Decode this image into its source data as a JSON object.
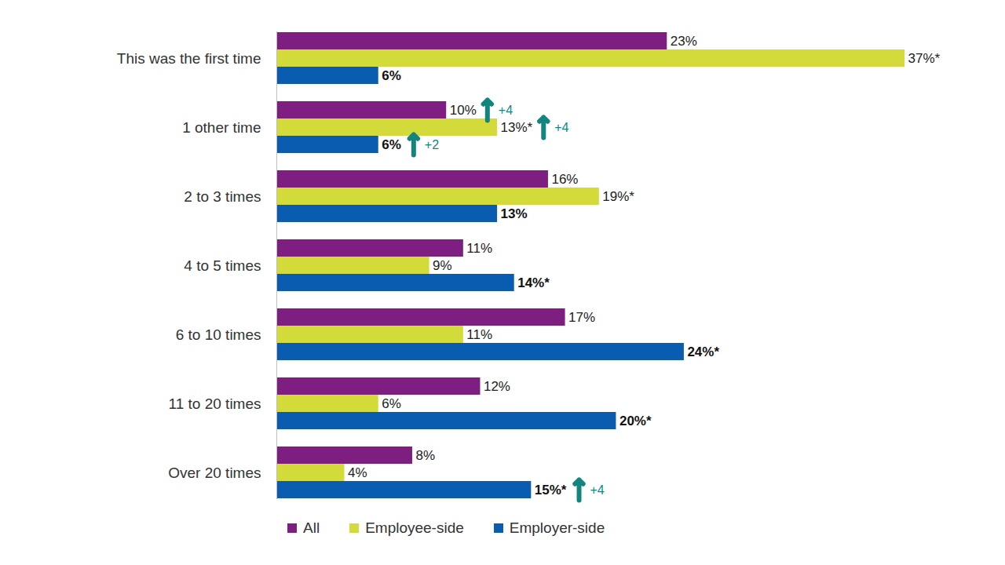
{
  "chart_data": {
    "type": "bar",
    "orientation": "horizontal",
    "categories": [
      "This was the first time",
      "1 other time",
      "2 to 3 times",
      "4 to 5 times",
      "6 to 10 times",
      "11 to 20 times",
      "Over 20 times"
    ],
    "series": [
      {
        "name": "All",
        "color": "#7e1e80",
        "values": [
          23,
          10,
          16,
          11,
          17,
          12,
          8
        ],
        "value_labels": [
          "23%",
          "10%",
          "16%",
          "11%",
          "17%",
          "12%",
          "8%"
        ]
      },
      {
        "name": "Employee-side",
        "color": "#d3db3a",
        "values": [
          37,
          13,
          19,
          9,
          11,
          6,
          4
        ],
        "value_labels": [
          "37%*",
          "13%*",
          "19%*",
          "9%",
          "11%",
          "6%",
          "4%"
        ]
      },
      {
        "name": "Employer-side",
        "color": "#0a5cb0",
        "values": [
          6,
          6,
          13,
          14,
          24,
          20,
          15
        ],
        "value_labels": [
          "6%",
          "6%",
          "13%",
          "14%*",
          "24%*",
          "20%*",
          "15%*"
        ]
      }
    ],
    "annotations": [
      {
        "category": "1 other time",
        "series": "All",
        "text": "+4"
      },
      {
        "category": "1 other time",
        "series": "Employee-side",
        "text": "+4"
      },
      {
        "category": "1 other time",
        "series": "Employer-side",
        "text": "+2"
      },
      {
        "category": "Over 20 times",
        "series": "Employer-side",
        "text": "+4"
      }
    ],
    "xlim": [
      0,
      37
    ],
    "xticks": [],
    "tick_labels": "y",
    "data_labels": true,
    "grid": false,
    "legend": "bottom"
  }
}
